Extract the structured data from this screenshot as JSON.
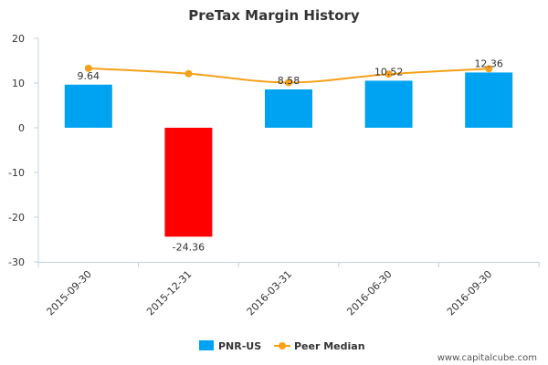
{
  "chart_data": {
    "type": "bar",
    "title": "PreTax Margin History",
    "categories": [
      "2015-09-30",
      "2015-12-31",
      "2016-03-31",
      "2016-06-30",
      "2016-09-30"
    ],
    "series": [
      {
        "name": "PNR-US",
        "type": "bar",
        "values": [
          9.64,
          -24.36,
          8.58,
          10.52,
          12.36
        ],
        "data_labels": [
          "9.64",
          "-24.36",
          "8.58",
          "10.52",
          "12.36"
        ],
        "color": "#00A2F2",
        "negative_color": "#FF0000"
      },
      {
        "name": "Peer Median",
        "type": "line",
        "values": [
          13.3,
          12.1,
          10.1,
          12.0,
          13.2
        ],
        "color": "#F5A11A"
      }
    ],
    "y_ticks": [
      "20",
      "10",
      "0",
      "-10",
      "-20",
      "-30"
    ],
    "ylim": [
      -30,
      20
    ],
    "grid": false,
    "legend_position": "bottom"
  },
  "credit": "www.capitalcube.com"
}
